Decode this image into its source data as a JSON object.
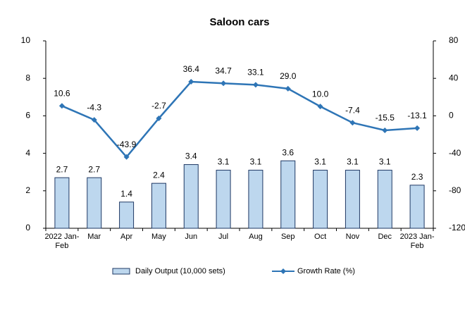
{
  "chart_data": {
    "type": "bar-line",
    "title": "Saloon cars",
    "categories": [
      "2022 Jan-Feb",
      "Mar",
      "Apr",
      "May",
      "Jun",
      "Jul",
      "Aug",
      "Sep",
      "Oct",
      "Nov",
      "Dec",
      "2023 Jan-Feb"
    ],
    "series": [
      {
        "name": "Daily Output (10,000 sets)",
        "type": "bar",
        "color": "#bdd7ee",
        "values": [
          2.7,
          2.7,
          1.4,
          2.4,
          3.4,
          3.1,
          3.1,
          3.6,
          3.1,
          3.1,
          3.1,
          2.3
        ],
        "value_labels": [
          "2.7",
          "2.7",
          "1.4",
          "2.4",
          "3.4",
          "3.1",
          "3.1",
          "3.6",
          "3.1",
          "3.1",
          "3.1",
          "2.3"
        ]
      },
      {
        "name": "Growth Rate (%)",
        "type": "line",
        "axis": "y2",
        "color": "#2e75b6",
        "values": [
          10.6,
          -4.3,
          -43.9,
          -2.7,
          36.4,
          34.7,
          33.1,
          29.0,
          10.0,
          -7.4,
          -15.5,
          -13.1
        ],
        "value_labels": [
          "10.6",
          "-4.3",
          "-43.9",
          "-2.7",
          "36.4",
          "34.7",
          "33.1",
          "29.0",
          "10.0",
          "-7.4",
          "-15.5",
          "-13.1"
        ]
      }
    ],
    "ylim": [
      0,
      10
    ],
    "yticks": [
      0,
      2,
      4,
      6,
      8,
      10
    ],
    "y2lim": [
      -120,
      80
    ],
    "y2ticks": [
      -120,
      -80,
      -40,
      0,
      40,
      80
    ],
    "grid": false,
    "legend": "bottom"
  }
}
